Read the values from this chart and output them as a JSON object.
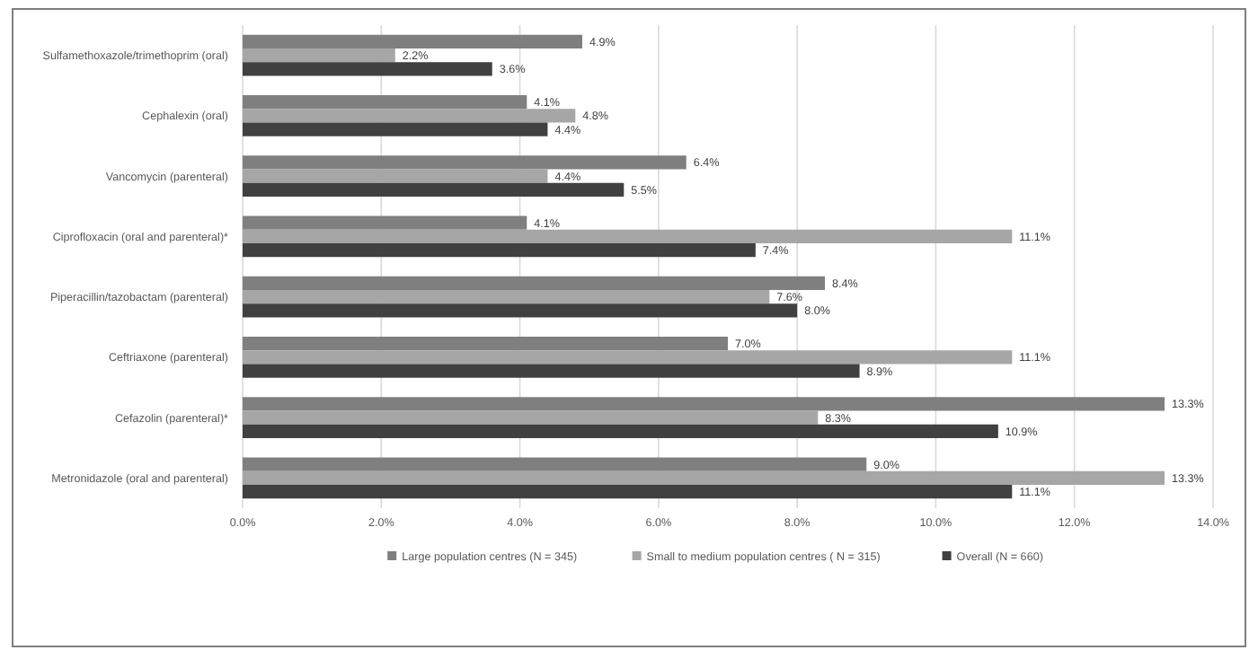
{
  "chart_data": {
    "type": "bar",
    "orientation": "horizontal",
    "categories": [
      "Sulfamethoxazole/trimethoprim (oral)",
      "Cephalexin (oral)",
      "Vancomycin (parenteral)",
      "Ciprofloxacin (oral and parenteral)*",
      "Piperacillin/tazobactam (parenteral)",
      "Ceftriaxone (parenteral)",
      "Cefazolin (parenteral)*",
      "Metronidazole (oral and parenteral)"
    ],
    "series": [
      {
        "name": "Large population centres (N = 345)",
        "color": "#7f7f7f",
        "values": [
          4.9,
          4.1,
          6.4,
          4.1,
          8.4,
          7.0,
          13.3,
          9.0
        ],
        "value_labels": [
          "4.9%",
          "4.1%",
          "6.4%",
          "4.1%",
          "8.4%",
          "7.0%",
          "13.3%",
          "9.0%"
        ]
      },
      {
        "name": "Small to medium population centres ( N = 315)",
        "color": "#a6a6a6",
        "values": [
          2.2,
          4.8,
          4.4,
          11.1,
          7.6,
          11.1,
          8.3,
          13.3
        ],
        "value_labels": [
          "2.2%",
          "4.8%",
          "4.4%",
          "11.1%",
          "7.6%",
          "11.1%",
          "8.3%",
          "13.3%"
        ]
      },
      {
        "name": "Overall (N = 660)",
        "color": "#404040",
        "values": [
          3.6,
          4.4,
          5.5,
          7.4,
          8.0,
          8.9,
          10.9,
          11.1
        ],
        "value_labels": [
          "3.6%",
          "4.4%",
          "5.5%",
          "7.4%",
          "8.0%",
          "8.9%",
          "10.9%",
          "11.1%"
        ]
      }
    ],
    "xlim": [
      0,
      14
    ],
    "xticks": [
      {
        "value": 0,
        "label": "0.0%"
      },
      {
        "value": 2,
        "label": "2.0%"
      },
      {
        "value": 4,
        "label": "4.0%"
      },
      {
        "value": 6,
        "label": "6.0%"
      },
      {
        "value": 8,
        "label": "8.0%"
      },
      {
        "value": 10,
        "label": "10.0%"
      },
      {
        "value": 12,
        "label": "12.0%"
      },
      {
        "value": 14,
        "label": "14.0%"
      }
    ],
    "grid": "x",
    "legend": "bottom"
  }
}
